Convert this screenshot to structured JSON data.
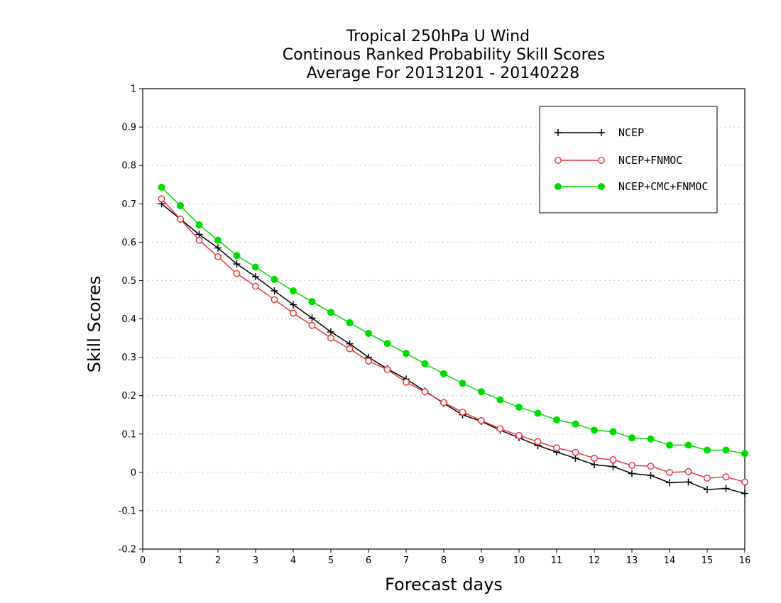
{
  "chart_data": {
    "type": "line",
    "title": "Tropical 250hPa U Wind",
    "subtitle": "Continous Ranked Probability Skill Scores",
    "subtitle2": "Average For 20131201 - 20140228",
    "xlabel": "Forecast days",
    "ylabel": "Skill Scores",
    "xlim": [
      0,
      16
    ],
    "ylim": [
      -0.2,
      1
    ],
    "xticks": [
      "0",
      "1",
      "2",
      "3",
      "4",
      "5",
      "6",
      "7",
      "8",
      "9",
      "10",
      "11",
      "12",
      "13",
      "14",
      "15",
      "16"
    ],
    "yticks": [
      "-0.2",
      "-0.1",
      "0",
      "0.1",
      "0.2",
      "0.3",
      "0.4",
      "0.5",
      "0.6",
      "0.7",
      "0.8",
      "0.9",
      "1"
    ],
    "grid": true,
    "legend_position": "top-right",
    "x": [
      0.5,
      1,
      1.5,
      2,
      2.5,
      3,
      3.5,
      4,
      4.5,
      5,
      5.5,
      6,
      6.5,
      7,
      7.5,
      8,
      8.5,
      9,
      9.5,
      10,
      10.5,
      11,
      11.5,
      12,
      12.5,
      13,
      13.5,
      14,
      14.5,
      15,
      15.5,
      16
    ],
    "series": [
      {
        "name": "NCEP",
        "color": "#000000",
        "marker": "plus",
        "values": [
          0.7,
          0.66,
          0.62,
          0.585,
          0.543,
          0.51,
          0.473,
          0.437,
          0.402,
          0.366,
          0.335,
          0.3,
          0.27,
          0.243,
          0.212,
          0.18,
          0.15,
          0.133,
          0.11,
          0.09,
          0.07,
          0.053,
          0.037,
          0.02,
          0.015,
          -0.003,
          -0.008,
          -0.027,
          -0.025,
          -0.045,
          -0.042,
          -0.055
        ]
      },
      {
        "name": "NCEP+FNMOC",
        "color": "#e8373a",
        "marker": "open-circle",
        "values": [
          0.713,
          0.66,
          0.605,
          0.562,
          0.518,
          0.485,
          0.45,
          0.415,
          0.383,
          0.35,
          0.322,
          0.29,
          0.268,
          0.235,
          0.21,
          0.182,
          0.157,
          0.135,
          0.114,
          0.096,
          0.08,
          0.064,
          0.052,
          0.037,
          0.033,
          0.018,
          0.016,
          0.0,
          0.002,
          -0.015,
          -0.012,
          -0.025
        ]
      },
      {
        "name": "NCEP+CMC+FNMOC",
        "color": "#00dc00",
        "marker": "filled-circle",
        "values": [
          0.743,
          0.695,
          0.645,
          0.605,
          0.565,
          0.535,
          0.503,
          0.473,
          0.445,
          0.417,
          0.39,
          0.362,
          0.336,
          0.31,
          0.283,
          0.257,
          0.232,
          0.21,
          0.189,
          0.17,
          0.154,
          0.137,
          0.126,
          0.11,
          0.106,
          0.09,
          0.087,
          0.071,
          0.071,
          0.058,
          0.058,
          0.049
        ]
      }
    ]
  }
}
